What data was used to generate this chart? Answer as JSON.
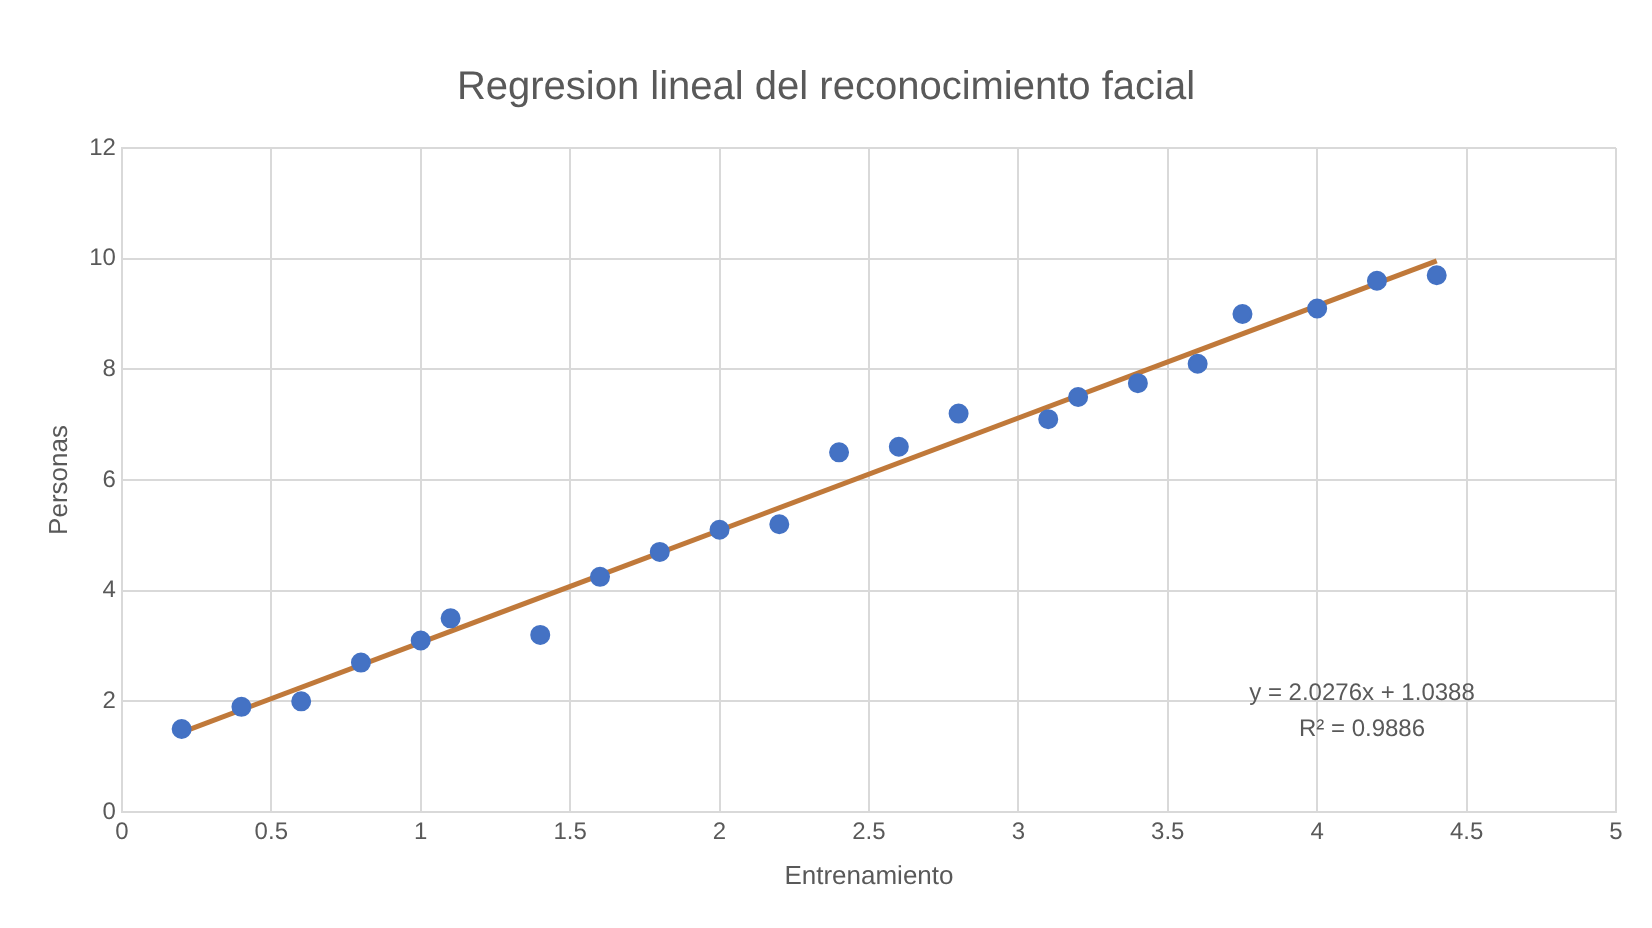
{
  "chart_data": {
    "type": "scatter",
    "title": "Regresion lineal del reconocimiento facial",
    "xlabel": "Entrenamiento",
    "ylabel": "Personas",
    "series": [
      {
        "type": "scatter",
        "marker": "circle",
        "color": "#4472c4",
        "x": [
          0.2,
          0.4,
          0.6,
          0.8,
          1.0,
          1.1,
          1.4,
          1.6,
          1.8,
          2.0,
          2.2,
          2.4,
          2.6,
          2.8,
          3.1,
          3.2,
          3.4,
          3.6,
          3.75,
          4.0,
          4.2,
          4.4
        ],
        "values": [
          1.5,
          1.9,
          2.0,
          2.7,
          3.1,
          3.5,
          3.2,
          4.25,
          4.7,
          5.1,
          5.2,
          6.5,
          6.6,
          7.2,
          7.1,
          7.5,
          7.75,
          8.1,
          9.0,
          9.1,
          9.6,
          9.7
        ]
      },
      {
        "type": "line",
        "marker": "none",
        "color": "#c0793a",
        "x": [
          0.2,
          4.4
        ],
        "values": [
          1.44,
          9.96
        ]
      }
    ],
    "annotations": [
      "y = 2.0276x + 1.0388",
      "R² = 0.9886"
    ],
    "xlim": [
      0,
      5
    ],
    "xticks": [
      0,
      0.5,
      1,
      1.5,
      2,
      2.5,
      3,
      3.5,
      4,
      4.5,
      5
    ],
    "ylim": [
      0,
      12
    ],
    "yticks": [
      0,
      2,
      4,
      6,
      8,
      10,
      12
    ],
    "grid": true,
    "legend": false
  }
}
